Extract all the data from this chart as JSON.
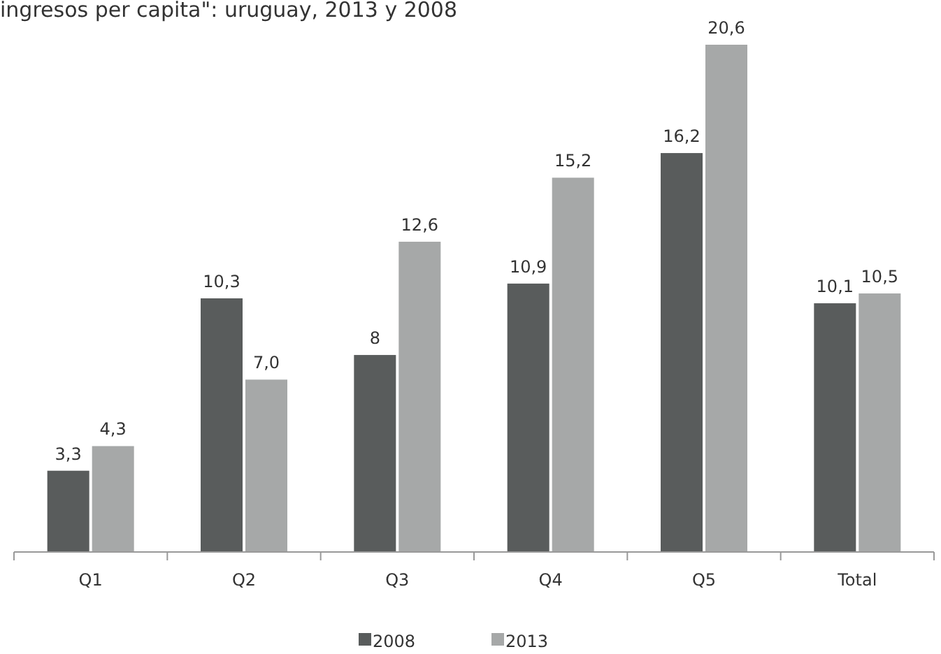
{
  "chart_data": {
    "type": "bar",
    "title": "ingresos per capita\": uruguay, 2013 y 2008",
    "categories": [
      "Q1",
      "Q2",
      "Q3",
      "Q4",
      "Q5",
      "Total"
    ],
    "series": [
      {
        "name": "2008",
        "color": "#595c5c",
        "values": [
          3.3,
          10.3,
          8,
          10.9,
          16.2,
          10.1
        ],
        "value_labels": [
          "3,3",
          "10,3",
          "8",
          "10,9",
          "16,2",
          "10,1"
        ]
      },
      {
        "name": "2013",
        "color": "#a6a8a8",
        "values": [
          4.3,
          7.0,
          12.6,
          15.2,
          20.6,
          10.5
        ],
        "value_labels": [
          "4,3",
          "7,0",
          "12,6",
          "15,2",
          "20,6",
          "10,5"
        ]
      }
    ],
    "legend": "bottom"
  }
}
